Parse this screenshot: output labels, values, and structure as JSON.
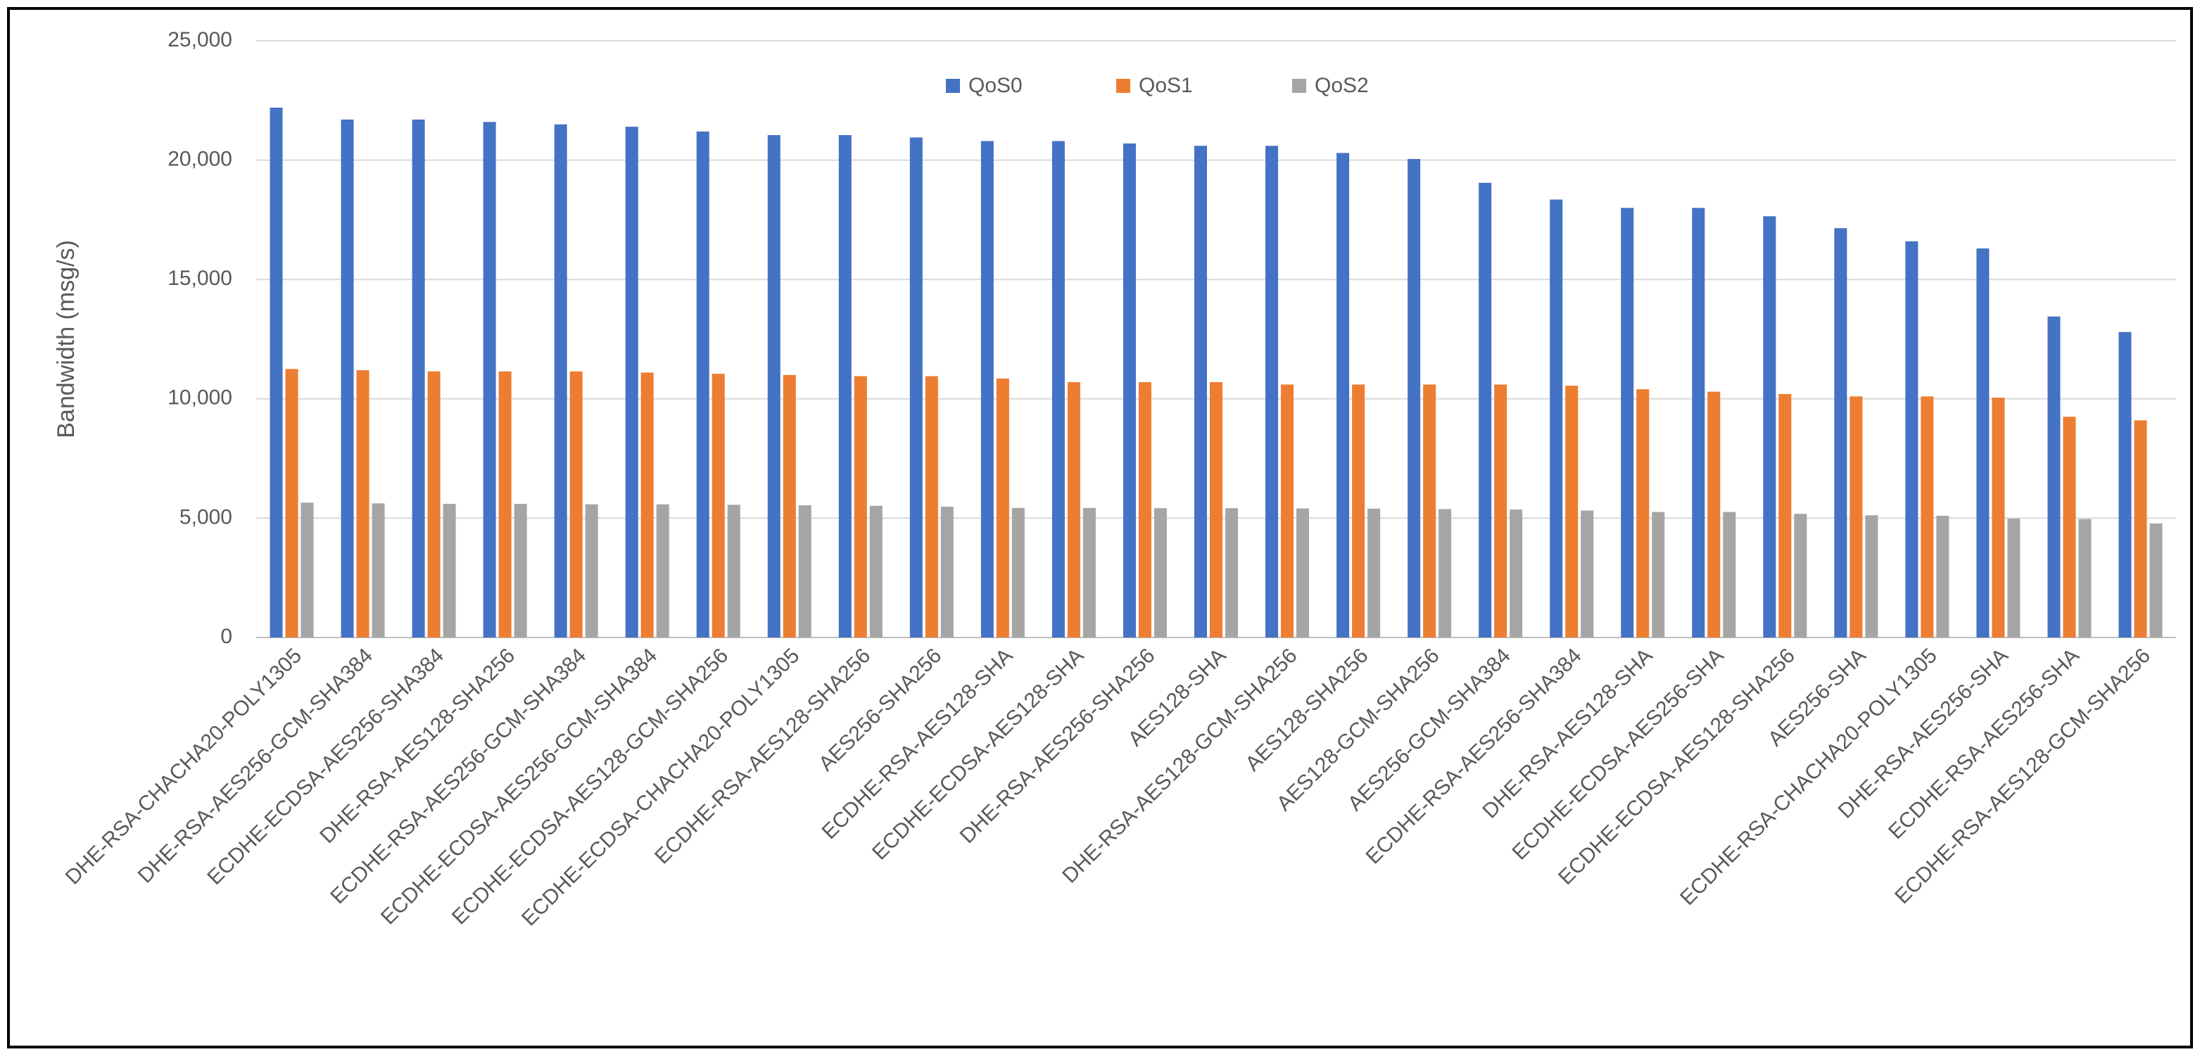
{
  "chart_data": {
    "type": "bar",
    "y_label": "Bandwidth (msg/s)",
    "categories": [
      "DHE-RSA-CHACHA20-POLY1305",
      "DHE-RSA-AES256-GCM-SHA384",
      "ECDHE-ECDSA-AES256-SHA384",
      "DHE-RSA-AES128-SHA256",
      "ECDHE-RSA-AES256-GCM-SHA384",
      "ECDHE-ECDSA-AES256-GCM-SHA384",
      "ECDHE-ECDSA-AES128-GCM-SHA256",
      "ECDHE-ECDSA-CHACHA20-POLY1305",
      "ECDHE-RSA-AES128-SHA256",
      "AES256-SHA256",
      "ECDHE-RSA-AES128-SHA",
      "ECDHE-ECDSA-AES128-SHA",
      "DHE-RSA-AES256-SHA256",
      "AES128-SHA",
      "DHE-RSA-AES128-GCM-SHA256",
      "AES128-SHA256",
      "AES128-GCM-SHA256",
      "AES256-GCM-SHA384",
      "ECDHE-RSA-AES256-SHA384",
      "DHE-RSA-AES128-SHA",
      "ECDHE-ECDSA-AES256-SHA",
      "ECDHE-ECDSA-AES128-SHA256",
      "AES256-SHA",
      "ECDHE-RSA-CHACHA20-POLY1305",
      "DHE-RSA-AES256-SHA",
      "ECDHE-RSA-AES256-SHA",
      "ECDHE-RSA-AES128-GCM-SHA256"
    ],
    "series": [
      {
        "name": "QoS0",
        "color": "#4472c4",
        "values": [
          22200,
          21700,
          21700,
          21600,
          21500,
          21400,
          21200,
          21050,
          21050,
          20950,
          20800,
          20800,
          20700,
          20600,
          20600,
          20300,
          20050,
          19050,
          18350,
          18000,
          18000,
          17650,
          17150,
          16600,
          16300,
          13450,
          12800
        ]
      },
      {
        "name": "QoS1",
        "color": "#ed7d31",
        "values": [
          11250,
          11200,
          11150,
          11150,
          11150,
          11100,
          11050,
          11000,
          10950,
          10950,
          10850,
          10700,
          10700,
          10700,
          10600,
          10600,
          10600,
          10600,
          10550,
          10400,
          10300,
          10200,
          10100,
          10100,
          10050,
          9250,
          9100
        ]
      },
      {
        "name": "QoS2",
        "color": "#a5a5a5",
        "values": [
          5650,
          5620,
          5600,
          5600,
          5580,
          5580,
          5560,
          5540,
          5520,
          5480,
          5430,
          5430,
          5420,
          5420,
          5410,
          5400,
          5380,
          5360,
          5320,
          5260,
          5260,
          5180,
          5120,
          5100,
          4980,
          4960,
          4780
        ]
      }
    ],
    "ylim": [
      0,
      25000
    ],
    "yticks": [
      0,
      {
        "value": 5000,
        "label": "5,000"
      },
      {
        "value": 10000,
        "label": "10,000"
      },
      {
        "value": 15000,
        "label": "15,000"
      },
      {
        "value": 20000,
        "label": "20,000"
      },
      {
        "value": 25000,
        "label": "25,000"
      }
    ],
    "grid": true
  }
}
